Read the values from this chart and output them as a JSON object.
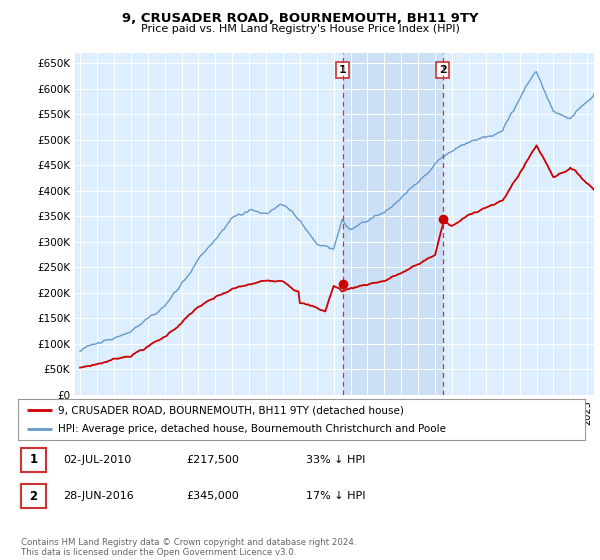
{
  "title": "9, CRUSADER ROAD, BOURNEMOUTH, BH11 9TY",
  "subtitle": "Price paid vs. HM Land Registry's House Price Index (HPI)",
  "ylim": [
    0,
    670000
  ],
  "yticks": [
    0,
    50000,
    100000,
    150000,
    200000,
    250000,
    300000,
    350000,
    400000,
    450000,
    500000,
    550000,
    600000,
    650000
  ],
  "ytick_labels": [
    "£0",
    "£50K",
    "£100K",
    "£150K",
    "£200K",
    "£250K",
    "£300K",
    "£350K",
    "£400K",
    "£450K",
    "£500K",
    "£550K",
    "£600K",
    "£650K"
  ],
  "hpi_color": "#6699cc",
  "price_color": "#cc0000",
  "marker_color": "#cc0000",
  "annotation_color": "#cc3333",
  "sale1_year": 2010,
  "sale1_month": 7,
  "sale1_price": 217500,
  "sale1_label": "1",
  "sale2_year": 2016,
  "sale2_month": 6,
  "sale2_price": 345000,
  "sale2_label": "2",
  "legend_line1": "9, CRUSADER ROAD, BOURNEMOUTH, BH11 9TY (detached house)",
  "legend_line2": "HPI: Average price, detached house, Bournemouth Christchurch and Poole",
  "note1_label": "1",
  "note1_date": "02-JUL-2010",
  "note1_price": "£217,500",
  "note1_pct": "33% ↓ HPI",
  "note2_label": "2",
  "note2_date": "28-JUN-2016",
  "note2_price": "£345,000",
  "note2_pct": "17% ↓ HPI",
  "footer": "Contains HM Land Registry data © Crown copyright and database right 2024.\nThis data is licensed under the Open Government Licence v3.0.",
  "bg_color": "#ffffff",
  "plot_bg_color": "#ddeeff",
  "highlight_bg_color": "#cce0f5"
}
